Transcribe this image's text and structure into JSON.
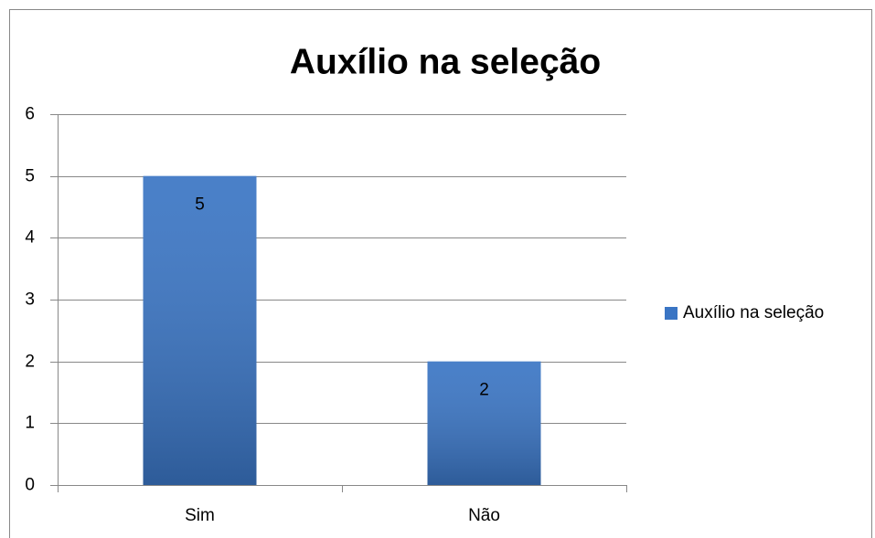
{
  "chart_data": {
    "type": "bar",
    "title": "Auxílio na seleção",
    "categories": [
      "Sim",
      "Não"
    ],
    "series": [
      {
        "name": "Auxílio na seleção",
        "color": "#3a75c4",
        "values": [
          5,
          2
        ]
      }
    ],
    "ylim": [
      0,
      6
    ],
    "yticks": [
      0,
      1,
      2,
      3,
      4,
      5,
      6
    ],
    "grid": true,
    "legend": "right"
  }
}
